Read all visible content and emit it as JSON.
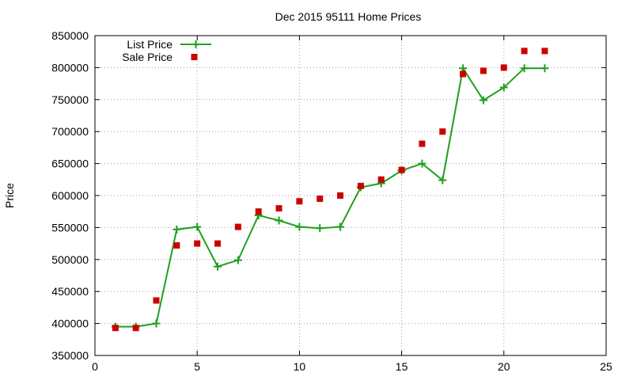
{
  "chart_data": {
    "type": "line",
    "title": "Dec 2015 95111 Home Prices",
    "xlabel": "",
    "ylabel": "Price",
    "xlim": [
      0,
      25
    ],
    "ylim": [
      350000,
      850000
    ],
    "x_ticks": [
      0,
      5,
      10,
      15,
      20,
      25
    ],
    "y_ticks": [
      350000,
      400000,
      450000,
      500000,
      550000,
      600000,
      650000,
      700000,
      750000,
      800000,
      850000
    ],
    "grid": true,
    "legend_position": "top-left",
    "series": [
      {
        "name": "List Price",
        "style": "line-with-plus-markers",
        "color": "#1fa01f",
        "x": [
          1,
          2,
          3,
          4,
          5,
          6,
          7,
          8,
          9,
          10,
          11,
          12,
          13,
          14,
          15,
          16,
          17,
          18,
          19,
          20,
          21,
          22
        ],
        "y": [
          395000,
          395000,
          400000,
          547000,
          551000,
          489000,
          499000,
          569000,
          561000,
          551000,
          549000,
          551000,
          613000,
          619000,
          639000,
          650000,
          624000,
          799000,
          749000,
          769000,
          799000,
          799000
        ]
      },
      {
        "name": "Sale Price",
        "style": "square-markers",
        "color": "#cc0000",
        "x": [
          1,
          2,
          3,
          4,
          5,
          6,
          7,
          8,
          9,
          10,
          11,
          12,
          13,
          14,
          15,
          16,
          17,
          18,
          19,
          20,
          21,
          22
        ],
        "y": [
          393000,
          393000,
          436000,
          522000,
          525000,
          525000,
          551000,
          575000,
          580000,
          591000,
          595000,
          600000,
          615000,
          625000,
          640000,
          681000,
          700000,
          790000,
          795000,
          800000,
          826000,
          826000
        ]
      }
    ]
  }
}
